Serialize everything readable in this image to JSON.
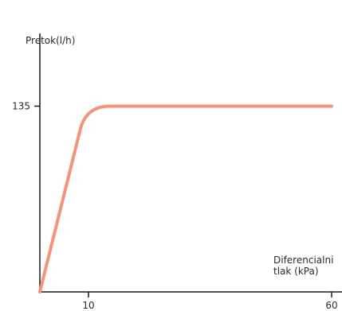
{
  "chart_data": {
    "type": "line",
    "title": "",
    "ylabel": "Pretok(l/h)",
    "xlabel_lines": [
      "Diferencialni",
      "tlak (kPa)"
    ],
    "x_ticks": [
      10,
      60
    ],
    "x_tick_labels": [
      "10",
      "60"
    ],
    "y_ticks": [
      135
    ],
    "y_tick_labels": [
      "135"
    ],
    "xlim": [
      0,
      60
    ],
    "ylim": [
      0,
      230
    ],
    "grid": false,
    "series": [
      {
        "color": "#f0957a",
        "x": [
          0,
          9.5,
          60
        ],
        "y": [
          0,
          135,
          135
        ]
      }
    ]
  }
}
